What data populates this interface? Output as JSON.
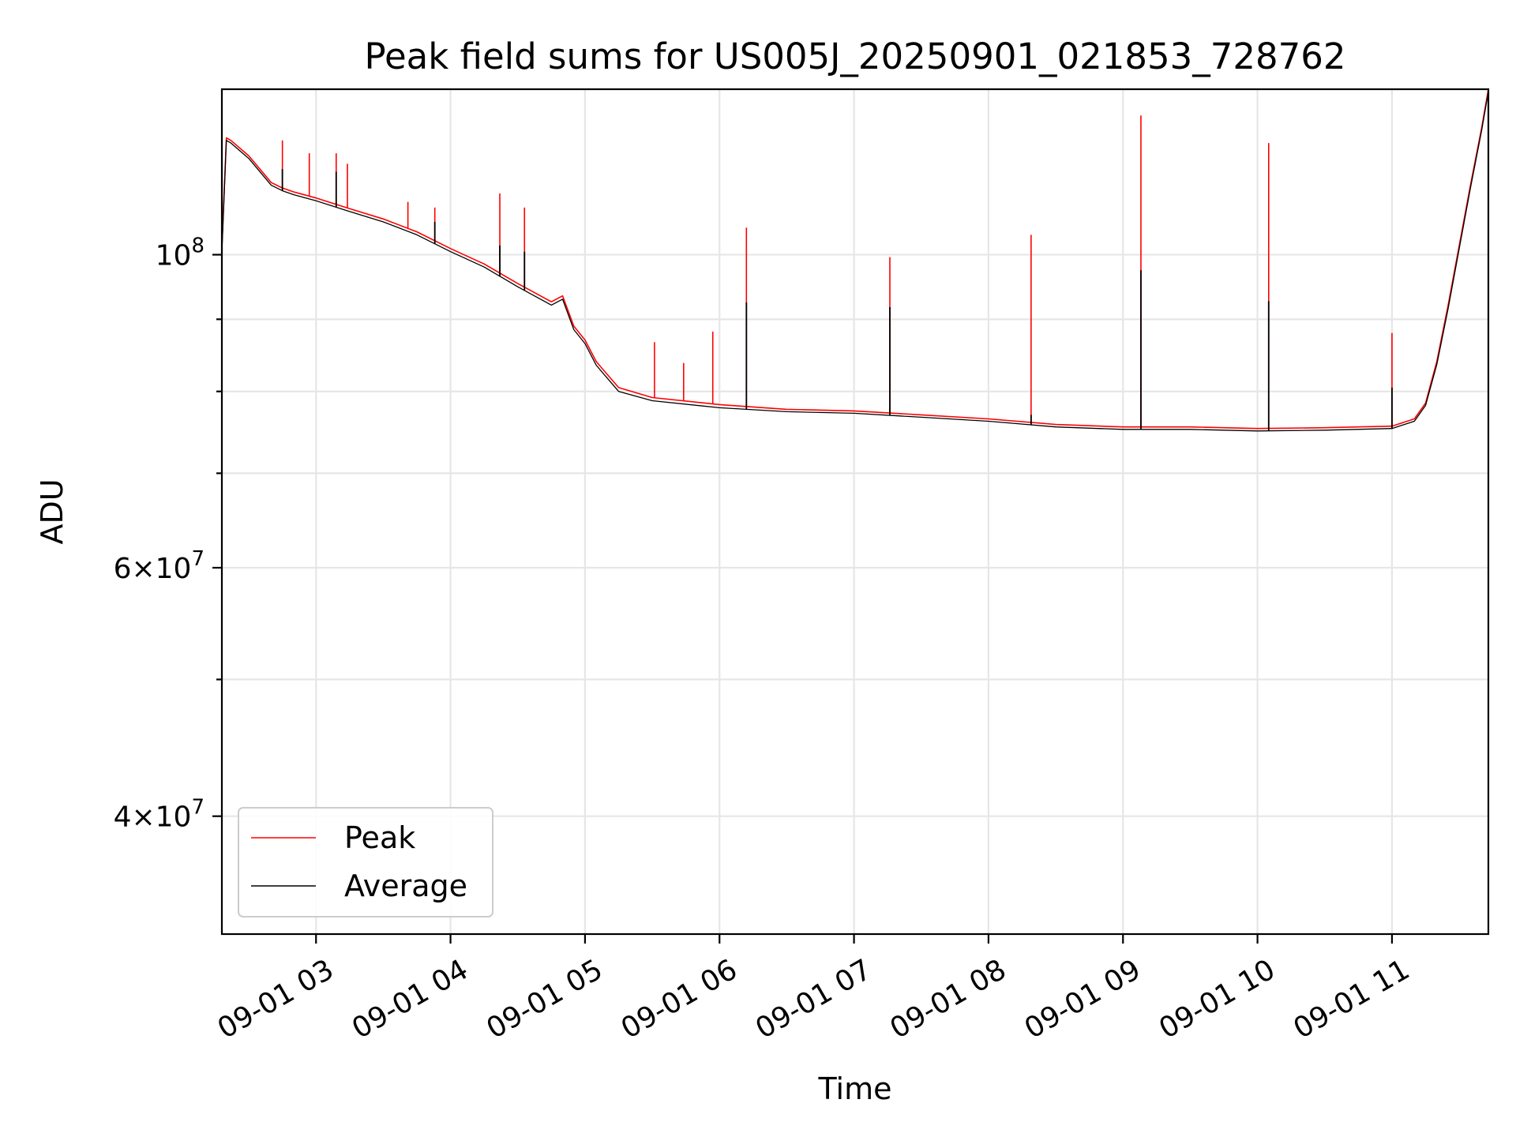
{
  "chart_data": {
    "type": "line",
    "title": "Peak field sums for US005J_20250901_021853_728762",
    "xlabel": "Time",
    "ylabel": "ADU",
    "y_scale": "log",
    "grid": true,
    "legend_position": "lower-left",
    "xlim": [
      "2025-09-01 02:18",
      "2025-09-01 11:43"
    ],
    "ylim": [
      33000000,
      131000000
    ],
    "x_ticks": [
      "09-01 03",
      "09-01 04",
      "09-01 05",
      "09-01 06",
      "09-01 07",
      "09-01 08",
      "09-01 09",
      "09-01 10",
      "09-01 11"
    ],
    "x_tick_times": [
      "2025-09-01 03:00",
      "2025-09-01 04:00",
      "2025-09-01 05:00",
      "2025-09-01 06:00",
      "2025-09-01 07:00",
      "2025-09-01 08:00",
      "2025-09-01 09:00",
      "2025-09-01 10:00",
      "2025-09-01 11:00"
    ],
    "y_ticks": [
      {
        "value": 100000000,
        "mantissa": "",
        "exponent": "8"
      },
      {
        "value": 60000000,
        "mantissa": "6",
        "exponent": "7"
      },
      {
        "value": 40000000,
        "mantissa": "4",
        "exponent": "7"
      }
    ],
    "y_minor_ticks": [
      50000000,
      70000000,
      80000000,
      90000000
    ],
    "series": [
      {
        "name": "Peak",
        "color": "#ff0000",
        "x": [
          "2025-09-01 02:18",
          "2025-09-01 02:20",
          "2025-09-01 02:22",
          "2025-09-01 02:30",
          "2025-09-01 02:40",
          "2025-09-01 02:45",
          "2025-09-01 02:50",
          "2025-09-01 03:00",
          "2025-09-01 03:15",
          "2025-09-01 03:30",
          "2025-09-01 03:45",
          "2025-09-01 04:00",
          "2025-09-01 04:15",
          "2025-09-01 04:30",
          "2025-09-01 04:45",
          "2025-09-01 04:50",
          "2025-09-01 04:55",
          "2025-09-01 05:00",
          "2025-09-01 05:05",
          "2025-09-01 05:15",
          "2025-09-01 05:30",
          "2025-09-01 06:00",
          "2025-09-01 06:30",
          "2025-09-01 07:00",
          "2025-09-01 07:30",
          "2025-09-01 08:00",
          "2025-09-01 08:30",
          "2025-09-01 09:00",
          "2025-09-01 09:30",
          "2025-09-01 10:00",
          "2025-09-01 10:30",
          "2025-09-01 11:00",
          "2025-09-01 11:10",
          "2025-09-01 11:15",
          "2025-09-01 11:20",
          "2025-09-01 11:25",
          "2025-09-01 11:30",
          "2025-09-01 11:35",
          "2025-09-01 11:40",
          "2025-09-01 11:43"
        ],
        "values": [
          101000000,
          121000000,
          120500000,
          117500000,
          112500000,
          111500000,
          110800000,
          109700000,
          107800000,
          106000000,
          103800000,
          101000000,
          98500000,
          95400000,
          92600000,
          93500000,
          89000000,
          87000000,
          84000000,
          80500000,
          79200000,
          78300000,
          77700000,
          77500000,
          77000000,
          76500000,
          75800000,
          75500000,
          75500000,
          75300000,
          75400000,
          75600000,
          76500000,
          78500000,
          84000000,
          92000000,
          101500000,
          112000000,
          123000000,
          131000000
        ],
        "spikes": [
          {
            "x": "2025-09-01 02:45",
            "y": 120500000
          },
          {
            "x": "2025-09-01 02:57",
            "y": 118000000
          },
          {
            "x": "2025-09-01 03:09",
            "y": 118000000
          },
          {
            "x": "2025-09-01 03:14",
            "y": 116000000
          },
          {
            "x": "2025-09-01 03:41",
            "y": 109000000
          },
          {
            "x": "2025-09-01 03:53",
            "y": 108000000
          },
          {
            "x": "2025-09-01 04:22",
            "y": 110500000
          },
          {
            "x": "2025-09-01 04:33",
            "y": 108000000
          },
          {
            "x": "2025-09-01 05:31",
            "y": 86700000
          },
          {
            "x": "2025-09-01 05:44",
            "y": 83800000
          },
          {
            "x": "2025-09-01 05:57",
            "y": 88200000
          },
          {
            "x": "2025-09-01 06:12",
            "y": 104500000
          },
          {
            "x": "2025-09-01 07:16",
            "y": 99600000
          },
          {
            "x": "2025-09-01 08:19",
            "y": 103300000
          },
          {
            "x": "2025-09-01 09:08",
            "y": 125500000
          },
          {
            "x": "2025-09-01 10:05",
            "y": 120000000
          },
          {
            "x": "2025-09-01 11:00",
            "y": 88000000
          }
        ]
      },
      {
        "name": "Average",
        "color": "#000000",
        "x": [
          "2025-09-01 02:18",
          "2025-09-01 02:20",
          "2025-09-01 02:22",
          "2025-09-01 02:30",
          "2025-09-01 02:40",
          "2025-09-01 02:45",
          "2025-09-01 02:50",
          "2025-09-01 03:00",
          "2025-09-01 03:15",
          "2025-09-01 03:30",
          "2025-09-01 03:45",
          "2025-09-01 04:00",
          "2025-09-01 04:15",
          "2025-09-01 04:30",
          "2025-09-01 04:45",
          "2025-09-01 04:50",
          "2025-09-01 04:55",
          "2025-09-01 05:00",
          "2025-09-01 05:05",
          "2025-09-01 05:15",
          "2025-09-01 05:30",
          "2025-09-01 06:00",
          "2025-09-01 06:30",
          "2025-09-01 07:00",
          "2025-09-01 07:30",
          "2025-09-01 08:00",
          "2025-09-01 08:30",
          "2025-09-01 09:00",
          "2025-09-01 09:30",
          "2025-09-01 10:00",
          "2025-09-01 10:30",
          "2025-09-01 11:00",
          "2025-09-01 11:10",
          "2025-09-01 11:15",
          "2025-09-01 11:20",
          "2025-09-01 11:25",
          "2025-09-01 11:30",
          "2025-09-01 11:35",
          "2025-09-01 11:40",
          "2025-09-01 11:43"
        ],
        "values": [
          100500000,
          120500000,
          120000000,
          117000000,
          112000000,
          111000000,
          110300000,
          109200000,
          107300000,
          105500000,
          103300000,
          100500000,
          98000000,
          94900000,
          92100000,
          93000000,
          88500000,
          86500000,
          83500000,
          80000000,
          78800000,
          77900000,
          77400000,
          77200000,
          76700000,
          76200000,
          75500000,
          75200000,
          75200000,
          75000000,
          75100000,
          75300000,
          76200000,
          78200000,
          83600000,
          91500000,
          101000000,
          111500000,
          122500000,
          130500000
        ],
        "spikes": [
          {
            "x": "2025-09-01 02:45",
            "y": 115000000
          },
          {
            "x": "2025-09-01 03:09",
            "y": 114500000
          },
          {
            "x": "2025-09-01 03:53",
            "y": 105500000
          },
          {
            "x": "2025-09-01 04:22",
            "y": 101500000
          },
          {
            "x": "2025-09-01 04:33",
            "y": 100500000
          },
          {
            "x": "2025-09-01 06:12",
            "y": 92500000
          },
          {
            "x": "2025-09-01 07:16",
            "y": 91800000
          },
          {
            "x": "2025-09-01 08:19",
            "y": 77000000
          },
          {
            "x": "2025-09-01 09:08",
            "y": 97500000
          },
          {
            "x": "2025-09-01 10:05",
            "y": 92700000
          },
          {
            "x": "2025-09-01 11:00",
            "y": 80500000
          }
        ]
      }
    ]
  }
}
